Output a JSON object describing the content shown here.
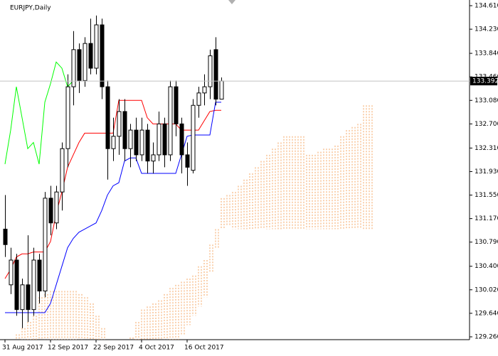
{
  "chart_data": {
    "type": "candlestick",
    "title": "EURJPY,Daily",
    "categories": [
      "31 Aug 2017",
      null,
      null,
      null,
      null,
      null,
      null,
      null,
      "12 Sep 2017",
      null,
      null,
      null,
      null,
      null,
      null,
      null,
      "22 Sep 2017",
      null,
      null,
      null,
      null,
      null,
      null,
      null,
      "4 Oct 2017",
      null,
      null,
      null,
      null,
      null,
      null,
      null,
      "16 Oct 2017",
      null,
      null,
      null,
      null,
      null,
      null,
      null,
      null,
      null,
      null,
      null,
      null,
      null,
      null,
      null,
      null,
      null,
      null,
      null,
      null,
      null,
      null,
      null,
      null,
      null,
      null,
      null,
      null,
      null,
      null,
      null,
      null
    ],
    "candles": {
      "up_color": "#ffffff",
      "down_color": "#000000",
      "outline": "#000000",
      "open": [
        131.0,
        130.1,
        130.5,
        129.7,
        130.1,
        129.7,
        130.5,
        130.0,
        131.5,
        131.1,
        131.6,
        132.3,
        133.3,
        133.9,
        133.4,
        134.0,
        133.6,
        134.3,
        133.3,
        132.3,
        132.5,
        132.9,
        132.3,
        132.6,
        132.2,
        132.6,
        132.1,
        132.2,
        132.7,
        132.2,
        133.3,
        132.7,
        132.2,
        131.95,
        133.0,
        133.2,
        133.3,
        133.9,
        133.1,
        null,
        null,
        null,
        null,
        null,
        null,
        null,
        null,
        null,
        null,
        null,
        null,
        null,
        null,
        null,
        null,
        null,
        null,
        null,
        null,
        null,
        null,
        null,
        null,
        null,
        null
      ],
      "high": [
        131.55,
        130.7,
        130.6,
        130.2,
        130.9,
        130.7,
        130.6,
        131.6,
        131.7,
        131.7,
        132.4,
        133.5,
        134.2,
        134.0,
        134.1,
        134.4,
        134.45,
        134.4,
        133.4,
        132.8,
        133.1,
        133.1,
        132.7,
        132.8,
        132.8,
        132.7,
        132.4,
        132.9,
        132.8,
        133.4,
        133.4,
        132.8,
        132.4,
        133.1,
        133.3,
        133.5,
        133.9,
        134.1,
        133.45,
        null,
        null,
        null,
        null,
        null,
        null,
        null,
        null,
        null,
        null,
        null,
        null,
        null,
        null,
        null,
        null,
        null,
        null,
        null,
        null,
        null,
        null,
        null,
        null,
        null,
        null
      ],
      "low": [
        130.55,
        129.95,
        129.6,
        129.4,
        129.5,
        129.6,
        129.8,
        129.9,
        130.9,
        131.0,
        131.3,
        132.0,
        133.0,
        133.2,
        133.3,
        133.5,
        133.5,
        133.1,
        131.8,
        132.1,
        132.2,
        132.1,
        132.0,
        132.1,
        132.1,
        131.9,
        131.9,
        132.1,
        132.0,
        132.1,
        132.5,
        131.9,
        131.7,
        131.9,
        132.8,
        133.0,
        133.1,
        133.0,
        133.1,
        null,
        null,
        null,
        null,
        null,
        null,
        null,
        null,
        null,
        null,
        null,
        null,
        null,
        null,
        null,
        null,
        null,
        null,
        null,
        null,
        null,
        null,
        null,
        null,
        null,
        null
      ],
      "close": [
        130.75,
        130.5,
        129.7,
        130.1,
        129.7,
        130.5,
        130.0,
        131.5,
        131.1,
        131.6,
        132.3,
        133.3,
        133.9,
        133.4,
        134.0,
        133.6,
        134.3,
        133.3,
        132.3,
        132.5,
        132.9,
        132.3,
        132.6,
        132.2,
        132.6,
        132.1,
        132.2,
        132.7,
        132.2,
        133.3,
        132.7,
        132.2,
        132.0,
        133.0,
        133.2,
        133.3,
        133.8,
        133.1,
        133.392,
        null,
        null,
        null,
        null,
        null,
        null,
        null,
        null,
        null,
        null,
        null,
        null,
        null,
        null,
        null,
        null,
        null,
        null,
        null,
        null,
        null,
        null,
        null,
        null,
        null,
        null
      ]
    },
    "series": [
      {
        "color": "#ff0000",
        "values": [
          130.2,
          130.35,
          130.55,
          130.6,
          130.6,
          130.63,
          130.63,
          130.63,
          130.8,
          131.25,
          131.6,
          132.0,
          132.2,
          132.4,
          132.55,
          132.55,
          132.55,
          132.55,
          132.55,
          132.55,
          133.08,
          133.08,
          133.08,
          133.08,
          133.08,
          132.8,
          132.7,
          132.7,
          132.7,
          132.7,
          132.7,
          132.6,
          132.6,
          132.6,
          132.6,
          132.75,
          132.9,
          132.92,
          132.92,
          null,
          null,
          null,
          null,
          null,
          null,
          null,
          null,
          null,
          null,
          null,
          null,
          null,
          null,
          null,
          null,
          null,
          null,
          null,
          null,
          null,
          null,
          null,
          null,
          null,
          null
        ]
      },
      {
        "color": "#0000ff",
        "values": [
          129.65,
          129.65,
          129.65,
          129.65,
          129.65,
          129.65,
          129.65,
          129.65,
          129.8,
          130.1,
          130.4,
          130.7,
          130.85,
          130.95,
          131.0,
          131.05,
          131.1,
          131.3,
          131.55,
          131.7,
          131.75,
          132.1,
          132.15,
          132.15,
          131.9,
          131.9,
          131.9,
          131.9,
          131.9,
          131.9,
          131.9,
          132.2,
          132.5,
          132.52,
          132.52,
          132.52,
          132.52,
          133.05,
          133.05,
          null,
          null,
          null,
          null,
          null,
          null,
          null,
          null,
          null,
          null,
          null,
          null,
          null,
          null,
          null,
          null,
          null,
          null,
          null,
          null,
          null,
          null,
          null,
          null,
          null,
          null
        ]
      },
      {
        "color": "#00ff00",
        "values": [
          132.05,
          132.6,
          133.3,
          132.8,
          132.3,
          132.4,
          132.05,
          133.05,
          133.35,
          133.7,
          133.6,
          133.3,
          133.4,
          null,
          null,
          null,
          null,
          null,
          null,
          null,
          null,
          null,
          null,
          null,
          null,
          null,
          null,
          null,
          null,
          null,
          null,
          null,
          null,
          null,
          null,
          null,
          null,
          null,
          null,
          null,
          null,
          null,
          null,
          null,
          null,
          null,
          null,
          null,
          null,
          null,
          null,
          null,
          null,
          null,
          null,
          null,
          null,
          null,
          null,
          null,
          null,
          null,
          null,
          null,
          null
        ]
      }
    ],
    "cloud": {
      "color": "#f4a460",
      "span_a": [
        129.1,
        129.2,
        129.3,
        129.4,
        129.5,
        129.6,
        129.9,
        129.95,
        130.0,
        130.0,
        130.0,
        130.0,
        130.0,
        129.95,
        129.9,
        129.8,
        129.6,
        129.4,
        129.2,
        129.15,
        129.15,
        129.2,
        129.25,
        129.5,
        129.7,
        129.75,
        129.8,
        129.85,
        129.95,
        130.05,
        130.1,
        130.15,
        130.2,
        130.25,
        130.4,
        130.5,
        130.75,
        131.0,
        131.5,
        131.55,
        131.6,
        131.7,
        131.8,
        131.9,
        132.0,
        132.1,
        132.2,
        132.3,
        132.4,
        132.5,
        132.5,
        132.5,
        132.5,
        132.2,
        132.2,
        132.25,
        132.3,
        132.3,
        132.35,
        132.5,
        132.6,
        132.65,
        132.7,
        133.0,
        133.0
      ],
      "span_b": [
        129.1,
        129.1,
        129.1,
        129.1,
        129.1,
        129.1,
        129.1,
        129.1,
        129.1,
        129.1,
        129.1,
        129.1,
        129.1,
        129.1,
        129.1,
        129.1,
        129.1,
        129.1,
        129.1,
        129.1,
        129.1,
        129.1,
        129.1,
        129.1,
        129.1,
        129.1,
        129.1,
        129.1,
        129.1,
        129.1,
        129.1,
        129.3,
        129.45,
        129.6,
        129.75,
        129.9,
        130.3,
        130.7,
        131.0,
        131.05,
        131.0,
        131.0,
        131.0,
        131.0,
        131.0,
        131.0,
        131.0,
        131.0,
        131.0,
        131.0,
        131.0,
        131.0,
        131.0,
        131.0,
        131.0,
        131.0,
        131.0,
        131.0,
        131.0,
        131.0,
        131.0,
        131.0,
        131.0,
        131.0,
        131.0
      ]
    },
    "current_price": 133.392,
    "ylim": [
      129.26,
      134.61
    ],
    "yticks": [
      {
        "value": 134.61,
        "label": "134.610"
      },
      {
        "value": 134.23,
        "label": "134.230"
      },
      {
        "value": 133.84,
        "label": "133.840"
      },
      {
        "value": 133.46,
        "label": "133.460"
      },
      {
        "value": 133.08,
        "label": "133.080"
      },
      {
        "value": 132.7,
        "label": "132.700"
      },
      {
        "value": 132.31,
        "label": "132.310"
      },
      {
        "value": 131.93,
        "label": "131.930"
      },
      {
        "value": 131.55,
        "label": "131.550"
      },
      {
        "value": 131.17,
        "label": "131.170"
      },
      {
        "value": 130.79,
        "label": "130.790"
      },
      {
        "value": 130.4,
        "label": "130.400"
      },
      {
        "value": 130.02,
        "label": "130.020"
      },
      {
        "value": 129.64,
        "label": "129.640"
      },
      {
        "value": 129.26,
        "label": "129.260"
      }
    ],
    "grid": false
  }
}
